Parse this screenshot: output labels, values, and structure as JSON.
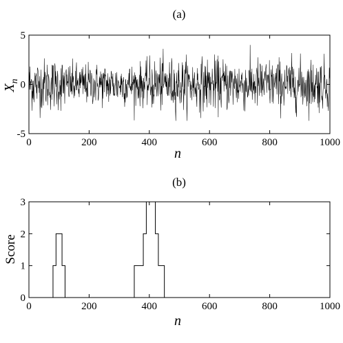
{
  "chart_data": [
    {
      "type": "line",
      "panel_label": "(a)",
      "xlabel": "n",
      "ylabel": "X",
      "ylabel_sub": "n",
      "xlim": [
        0,
        1000
      ],
      "ylim": [
        -5,
        5
      ],
      "xticks": [
        0,
        200,
        400,
        600,
        800,
        1000
      ],
      "yticks": [
        -5,
        0,
        5
      ],
      "line_color": "#000000",
      "series": [
        {
          "n_points": 1000,
          "segments": [
            {
              "from": 0,
              "to": 120,
              "std": 1.3
            },
            {
              "from": 120,
              "to": 400,
              "std": 1.05
            },
            {
              "from": 400,
              "to": 1000,
              "std": 1.3
            }
          ]
        }
      ]
    },
    {
      "type": "line",
      "panel_label": "(b)",
      "xlabel": "n",
      "ylabel": "Score",
      "xlim": [
        0,
        1000
      ],
      "ylim": [
        0,
        3
      ],
      "xticks": [
        0,
        200,
        400,
        600,
        800,
        1000
      ],
      "yticks": [
        0,
        1,
        2,
        3
      ],
      "line_color": "#000000",
      "series": [
        {
          "step": true,
          "x": [
            0,
            80,
            90,
            110,
            120,
            350,
            380,
            390,
            400,
            420,
            430,
            450,
            1000
          ],
          "y": [
            0,
            1,
            2,
            1,
            0,
            1,
            2,
            3,
            3,
            2,
            1,
            0,
            0
          ]
        }
      ]
    }
  ]
}
